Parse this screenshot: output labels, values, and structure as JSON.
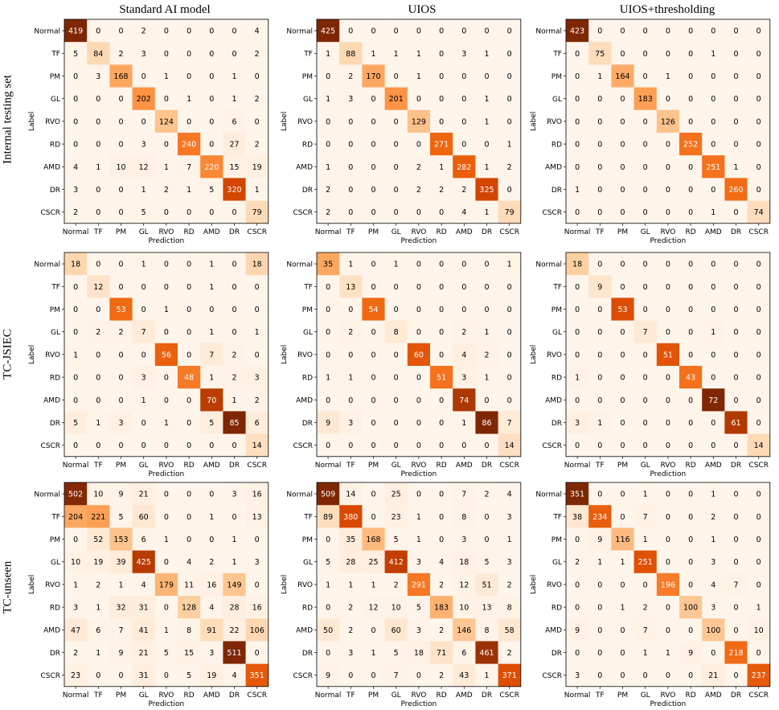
{
  "column_titles": [
    "Standard AI model",
    "UIOS",
    "UIOS+thresholding"
  ],
  "row_titles": [
    "Internal testing set",
    "TC-JSIEC",
    "TC-unseen"
  ],
  "axis": {
    "xlabel": "Prediction",
    "ylabel": "Label"
  },
  "classes": [
    "Normal",
    "TF",
    "PM",
    "GL",
    "RVO",
    "RD",
    "AMD",
    "DR",
    "CSCR"
  ],
  "chart_data": [
    {
      "type": "heatmap",
      "dataset": "Internal testing set",
      "model": "Standard AI model",
      "xlabel": "Prediction",
      "ylabel": "Label",
      "categories": [
        "Normal",
        "TF",
        "PM",
        "GL",
        "RVO",
        "RD",
        "AMD",
        "DR",
        "CSCR"
      ],
      "matrix": [
        [
          419,
          0,
          0,
          2,
          0,
          0,
          0,
          0,
          4
        ],
        [
          5,
          84,
          2,
          3,
          0,
          0,
          0,
          0,
          2
        ],
        [
          0,
          3,
          168,
          0,
          1,
          0,
          0,
          1,
          0
        ],
        [
          0,
          0,
          0,
          202,
          0,
          1,
          0,
          1,
          2
        ],
        [
          0,
          0,
          0,
          0,
          124,
          0,
          0,
          6,
          0
        ],
        [
          0,
          0,
          0,
          3,
          0,
          240,
          0,
          27,
          2
        ],
        [
          4,
          1,
          10,
          12,
          1,
          7,
          220,
          15,
          19
        ],
        [
          3,
          0,
          0,
          1,
          2,
          1,
          5,
          320,
          1
        ],
        [
          2,
          0,
          0,
          5,
          0,
          0,
          0,
          0,
          79
        ]
      ]
    },
    {
      "type": "heatmap",
      "dataset": "Internal testing set",
      "model": "UIOS",
      "xlabel": "Prediction",
      "ylabel": "Label",
      "categories": [
        "Normal",
        "TF",
        "PM",
        "GL",
        "RVO",
        "RD",
        "AMD",
        "DR",
        "CSCR"
      ],
      "matrix": [
        [
          425,
          0,
          0,
          0,
          0,
          0,
          0,
          0,
          0
        ],
        [
          1,
          88,
          1,
          1,
          1,
          0,
          3,
          1,
          0
        ],
        [
          0,
          2,
          170,
          0,
          1,
          0,
          0,
          0,
          0
        ],
        [
          1,
          3,
          0,
          201,
          0,
          0,
          0,
          1,
          0
        ],
        [
          0,
          0,
          0,
          0,
          129,
          0,
          0,
          1,
          0
        ],
        [
          0,
          0,
          0,
          0,
          0,
          271,
          0,
          0,
          1
        ],
        [
          1,
          0,
          0,
          0,
          2,
          1,
          282,
          1,
          2
        ],
        [
          2,
          0,
          0,
          0,
          2,
          2,
          2,
          325,
          0
        ],
        [
          2,
          0,
          0,
          0,
          0,
          0,
          4,
          1,
          79
        ]
      ]
    },
    {
      "type": "heatmap",
      "dataset": "Internal testing set",
      "model": "UIOS+thresholding",
      "xlabel": "Prediction",
      "ylabel": "Label",
      "categories": [
        "Normal",
        "TF",
        "PM",
        "GL",
        "RVO",
        "RD",
        "AMD",
        "DR",
        "CSCR"
      ],
      "matrix": [
        [
          423,
          0,
          0,
          0,
          0,
          0,
          0,
          0,
          0
        ],
        [
          0,
          75,
          0,
          0,
          0,
          0,
          1,
          0,
          0
        ],
        [
          0,
          1,
          164,
          0,
          1,
          0,
          0,
          0,
          0
        ],
        [
          0,
          0,
          0,
          183,
          0,
          0,
          0,
          0,
          0
        ],
        [
          0,
          0,
          0,
          0,
          126,
          0,
          0,
          0,
          0
        ],
        [
          0,
          0,
          0,
          0,
          0,
          252,
          0,
          0,
          0
        ],
        [
          0,
          0,
          0,
          0,
          0,
          0,
          251,
          1,
          0
        ],
        [
          1,
          0,
          0,
          0,
          0,
          0,
          0,
          260,
          0
        ],
        [
          0,
          0,
          0,
          0,
          0,
          0,
          1,
          0,
          74
        ]
      ]
    },
    {
      "type": "heatmap",
      "dataset": "TC-JSIEC",
      "model": "Standard AI model",
      "xlabel": "Prediction",
      "ylabel": "Label",
      "categories": [
        "Normal",
        "TF",
        "PM",
        "GL",
        "RVO",
        "RD",
        "AMD",
        "DR",
        "CSCR"
      ],
      "matrix": [
        [
          18,
          0,
          0,
          1,
          0,
          0,
          1,
          0,
          18
        ],
        [
          0,
          12,
          0,
          0,
          0,
          0,
          1,
          0,
          0
        ],
        [
          0,
          0,
          53,
          0,
          1,
          0,
          0,
          0,
          0
        ],
        [
          0,
          2,
          2,
          7,
          0,
          0,
          1,
          0,
          1
        ],
        [
          1,
          0,
          0,
          0,
          56,
          0,
          7,
          2,
          0
        ],
        [
          0,
          0,
          0,
          3,
          0,
          48,
          1,
          2,
          3
        ],
        [
          0,
          0,
          0,
          1,
          0,
          0,
          70,
          1,
          2
        ],
        [
          5,
          1,
          3,
          0,
          1,
          0,
          5,
          85,
          6
        ],
        [
          0,
          0,
          0,
          0,
          0,
          0,
          0,
          0,
          14
        ]
      ]
    },
    {
      "type": "heatmap",
      "dataset": "TC-JSIEC",
      "model": "UIOS",
      "xlabel": "Prediction",
      "ylabel": "Label",
      "categories": [
        "Normal",
        "TF",
        "PM",
        "GL",
        "RVO",
        "RD",
        "AMD",
        "DR",
        "CSCR"
      ],
      "matrix": [
        [
          35,
          1,
          0,
          1,
          0,
          0,
          0,
          0,
          1
        ],
        [
          0,
          13,
          0,
          0,
          0,
          0,
          0,
          0,
          0
        ],
        [
          0,
          0,
          54,
          0,
          0,
          0,
          0,
          0,
          0
        ],
        [
          0,
          2,
          0,
          8,
          0,
          0,
          2,
          1,
          0
        ],
        [
          0,
          0,
          0,
          0,
          60,
          0,
          4,
          2,
          0
        ],
        [
          1,
          1,
          0,
          0,
          0,
          51,
          3,
          1,
          0
        ],
        [
          0,
          0,
          0,
          0,
          0,
          0,
          74,
          0,
          0
        ],
        [
          9,
          3,
          0,
          0,
          0,
          0,
          1,
          86,
          7
        ],
        [
          0,
          0,
          0,
          0,
          0,
          0,
          0,
          0,
          14
        ]
      ]
    },
    {
      "type": "heatmap",
      "dataset": "TC-JSIEC",
      "model": "UIOS+thresholding",
      "xlabel": "Prediction",
      "ylabel": "Label",
      "categories": [
        "Normal",
        "TF",
        "PM",
        "GL",
        "RVO",
        "RD",
        "AMD",
        "DR",
        "CSCR"
      ],
      "matrix": [
        [
          18,
          0,
          0,
          0,
          0,
          0,
          0,
          0,
          0
        ],
        [
          0,
          9,
          0,
          0,
          0,
          0,
          0,
          0,
          0
        ],
        [
          0,
          0,
          53,
          0,
          0,
          0,
          0,
          0,
          0
        ],
        [
          0,
          0,
          0,
          7,
          0,
          0,
          1,
          0,
          0
        ],
        [
          0,
          0,
          0,
          0,
          51,
          0,
          0,
          0,
          0
        ],
        [
          1,
          0,
          0,
          0,
          0,
          43,
          0,
          0,
          0
        ],
        [
          0,
          0,
          0,
          0,
          0,
          0,
          72,
          0,
          0
        ],
        [
          3,
          1,
          0,
          0,
          0,
          0,
          0,
          61,
          0
        ],
        [
          0,
          0,
          0,
          0,
          0,
          0,
          0,
          0,
          14
        ]
      ]
    },
    {
      "type": "heatmap",
      "dataset": "TC-unseen",
      "model": "Standard AI model",
      "xlabel": "Prediction",
      "ylabel": "Label",
      "categories": [
        "Normal",
        "TF",
        "PM",
        "GL",
        "RVO",
        "RD",
        "AMD",
        "DR",
        "CSCR"
      ],
      "matrix": [
        [
          502,
          10,
          9,
          21,
          0,
          0,
          0,
          3,
          16
        ],
        [
          204,
          221,
          5,
          60,
          0,
          0,
          1,
          0,
          13
        ],
        [
          0,
          52,
          153,
          6,
          1,
          0,
          0,
          1,
          0
        ],
        [
          10,
          19,
          39,
          425,
          0,
          4,
          2,
          1,
          3
        ],
        [
          1,
          2,
          1,
          4,
          179,
          11,
          16,
          149,
          0
        ],
        [
          3,
          1,
          32,
          31,
          0,
          128,
          4,
          28,
          16
        ],
        [
          47,
          6,
          7,
          41,
          1,
          8,
          91,
          22,
          106
        ],
        [
          2,
          1,
          9,
          21,
          5,
          15,
          3,
          511,
          0
        ],
        [
          23,
          0,
          0,
          31,
          0,
          5,
          19,
          4,
          351
        ]
      ]
    },
    {
      "type": "heatmap",
      "dataset": "TC-unseen",
      "model": "UIOS",
      "xlabel": "Prediction",
      "ylabel": "Label",
      "categories": [
        "Normal",
        "TF",
        "PM",
        "GL",
        "RVO",
        "RD",
        "AMD",
        "DR",
        "CSCR"
      ],
      "matrix": [
        [
          509,
          14,
          0,
          25,
          0,
          0,
          7,
          2,
          4
        ],
        [
          89,
          380,
          0,
          23,
          1,
          0,
          8,
          0,
          3
        ],
        [
          0,
          35,
          168,
          5,
          1,
          0,
          3,
          0,
          1
        ],
        [
          5,
          28,
          25,
          412,
          3,
          4,
          18,
          5,
          3
        ],
        [
          1,
          1,
          1,
          2,
          291,
          2,
          12,
          51,
          2
        ],
        [
          0,
          2,
          12,
          10,
          5,
          183,
          10,
          13,
          8
        ],
        [
          50,
          2,
          0,
          60,
          3,
          2,
          146,
          8,
          58
        ],
        [
          0,
          3,
          1,
          5,
          18,
          71,
          6,
          461,
          2
        ],
        [
          9,
          0,
          0,
          7,
          0,
          2,
          43,
          1,
          371
        ]
      ]
    },
    {
      "type": "heatmap",
      "dataset": "TC-unseen",
      "model": "UIOS+thresholding",
      "xlabel": "Prediction",
      "ylabel": "Label",
      "categories": [
        "Normal",
        "TF",
        "PM",
        "GL",
        "RVO",
        "RD",
        "AMD",
        "DR",
        "CSCR"
      ],
      "matrix": [
        [
          351,
          0,
          0,
          1,
          0,
          0,
          1,
          0,
          0
        ],
        [
          38,
          234,
          0,
          7,
          0,
          0,
          2,
          0,
          0
        ],
        [
          0,
          9,
          116,
          1,
          0,
          0,
          1,
          0,
          0
        ],
        [
          2,
          1,
          1,
          251,
          0,
          0,
          3,
          0,
          0
        ],
        [
          0,
          0,
          0,
          0,
          196,
          0,
          4,
          7,
          0
        ],
        [
          0,
          0,
          1,
          2,
          0,
          100,
          3,
          0,
          1
        ],
        [
          9,
          0,
          0,
          7,
          0,
          0,
          100,
          0,
          10
        ],
        [
          0,
          0,
          0,
          1,
          1,
          9,
          0,
          218,
          0
        ],
        [
          3,
          0,
          0,
          0,
          0,
          0,
          21,
          0,
          237
        ]
      ]
    }
  ],
  "colors": {
    "low": "#fff5eb",
    "mid": "#fd8d3c",
    "high": "#7f2704"
  }
}
